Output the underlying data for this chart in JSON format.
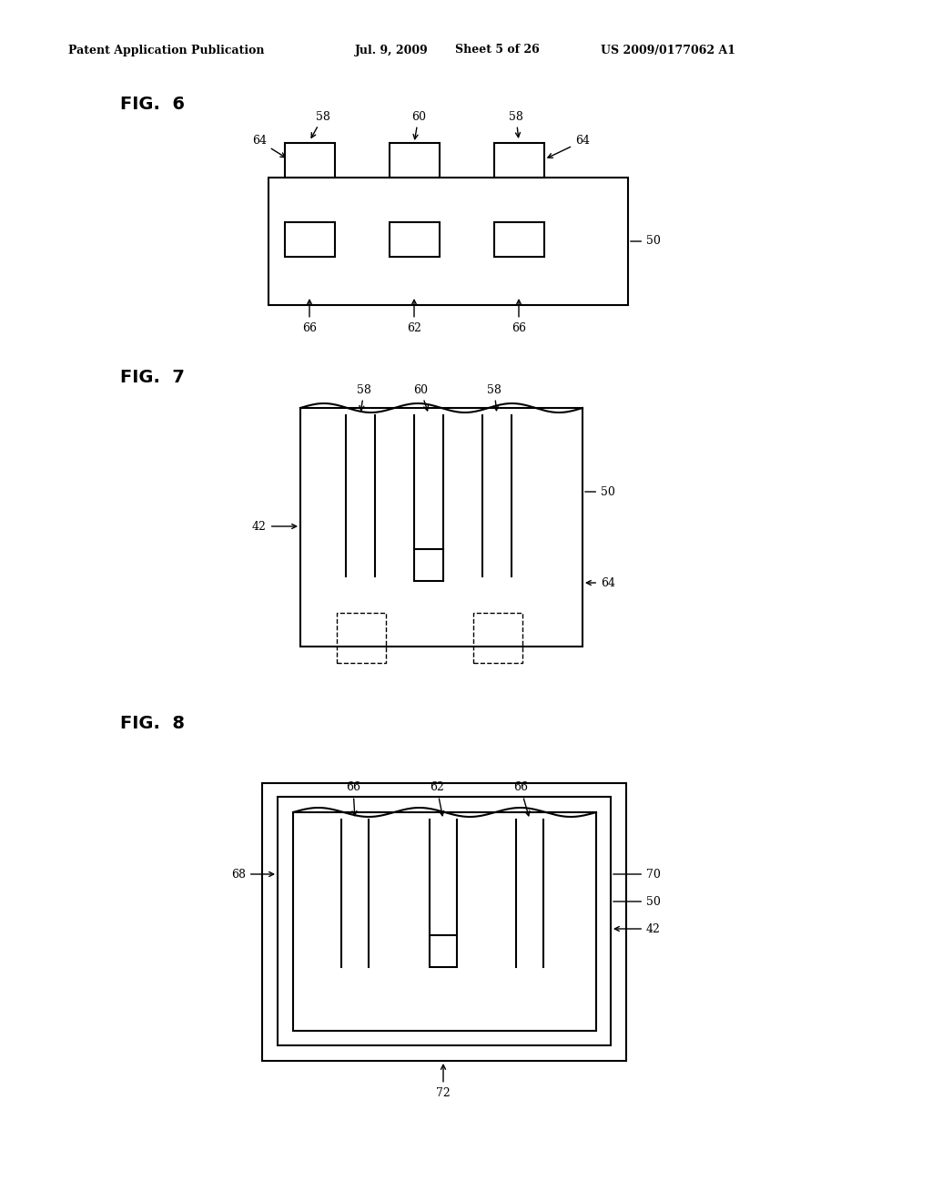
{
  "bg_color": "#ffffff",
  "header_text": "Patent Application Publication",
  "header_date": "Jul. 9, 2009",
  "header_sheet": "Sheet 5 of 26",
  "header_patent": "US 2009/0177062 A1",
  "fig6_label": "FIG.  6",
  "fig7_label": "FIG.  7",
  "fig8_label": "FIG.  8",
  "text_color": "#000000",
  "line_color": "#000000",
  "line_width": 1.5
}
